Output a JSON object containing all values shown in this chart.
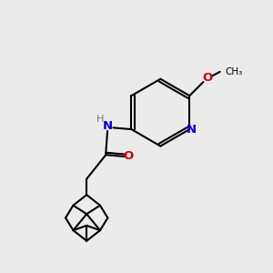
{
  "bg_color": "#ebebeb",
  "bond_color": "#000000",
  "bond_width": 1.5,
  "atom_colors": {
    "N": "#0000cc",
    "O": "#cc0000",
    "H": "#777777",
    "C": "#000000"
  },
  "font_size_atom": 9.5,
  "font_size_small": 8.0
}
